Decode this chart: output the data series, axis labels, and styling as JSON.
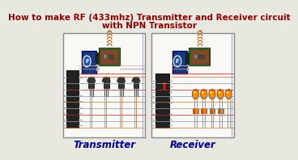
{
  "title_line1": "How to make RF (433mhz) Transmitter and Receiver circuit",
  "title_line2": "with NPN Transistor",
  "title_color": "#8B0000",
  "title_fontsize": 7.5,
  "bg_color": "#e8e8e0",
  "label_transmitter": "Transmitter",
  "label_receiver": "Receiver",
  "label_color": "#00008B",
  "label_fontsize": 8.5,
  "wire_brown": "#c87941",
  "wire_red": "#c03030",
  "wire_gray": "#9999aa",
  "wire_pink": "#ddaaaa",
  "blue_color": "#1a3a7a",
  "green_board": "#3a7a3a",
  "brown_board": "#7a4a2a",
  "ic_dark": "#222222",
  "transistor_dark": "#333333",
  "led_orange": "#ff8c00",
  "coil_color": "#b87830",
  "white": "#ffffff",
  "box_border": "#888888",
  "box_fill": "#f8f8f5"
}
